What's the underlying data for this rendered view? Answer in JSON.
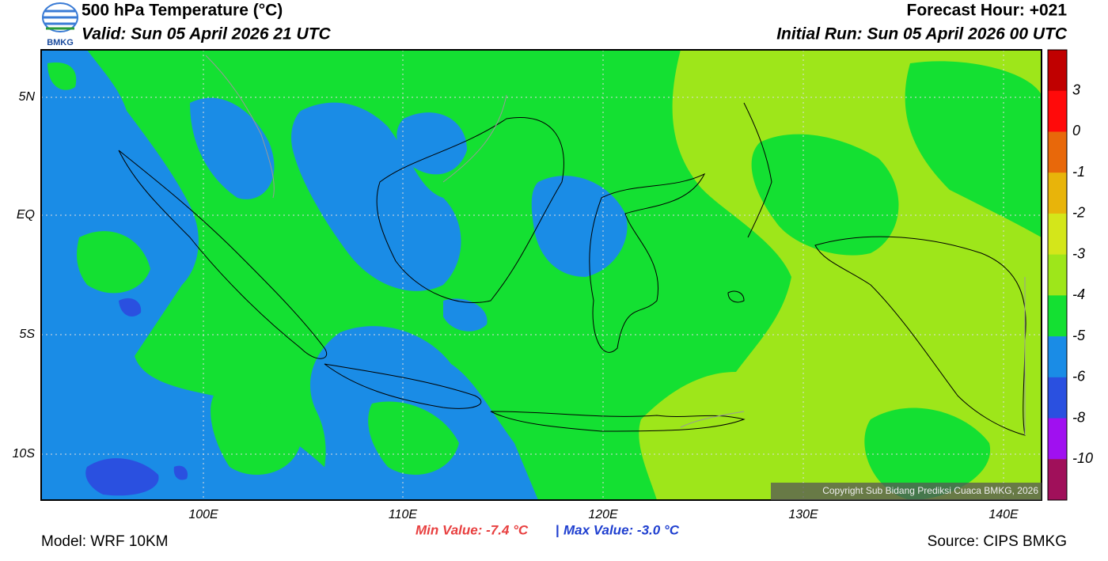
{
  "header": {
    "logo_text": "BMKG",
    "title": "500 hPa Temperature (°C)",
    "valid": "Valid: Sun 05 April 2026 21 UTC",
    "forecast_hour": "Forecast Hour: +021",
    "initial_run": "Initial Run: Sun 05 April 2026 00 UTC"
  },
  "map": {
    "lat_labels": [
      "5N",
      "EQ",
      "5S",
      "10S"
    ],
    "lon_labels": [
      "100E",
      "110E",
      "120E",
      "130E",
      "140E"
    ],
    "copyright": "Copyright Sub Bidang Prediksi Cuaca BMKG, 2026"
  },
  "colorbar": {
    "labels": [
      "3",
      "0",
      "-1",
      "-2",
      "-3",
      "-4",
      "-5",
      "-6",
      "-8",
      "-10"
    ],
    "colors": [
      "#c00000",
      "#ff0a0a",
      "#e8680a",
      "#e8b40a",
      "#d4e61a",
      "#9ee61a",
      "#14e032",
      "#1a8ce6",
      "#2a50e0",
      "#a010f0",
      "#a0105a"
    ]
  },
  "footer": {
    "min_value": "Min Value: -7.4 °C",
    "separator": "|",
    "max_value": "Max Value: -3.0 °C",
    "model": "Model: WRF 10KM",
    "source": "Source: CIPS BMKG"
  }
}
